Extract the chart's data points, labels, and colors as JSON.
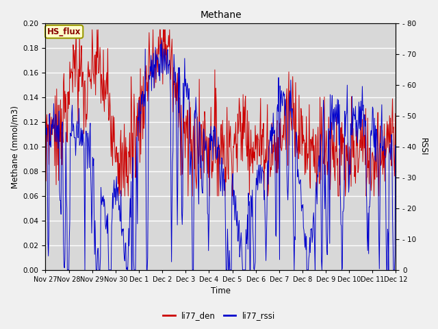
{
  "title": "Methane",
  "ylabel_left": "Methane (mmol/m3)",
  "ylabel_right": "RSSI",
  "xlabel": "Time",
  "legend_label": "HS_flux",
  "ylim_left": [
    0.0,
    0.2
  ],
  "ylim_right": [
    0,
    80
  ],
  "line1_label": "li77_den",
  "line2_label": "li77_rssi",
  "line1_color": "#cc0000",
  "line2_color": "#0000cc",
  "bg_color": "#d8d8d8",
  "fig_color": "#f0f0f0",
  "legend_box_facecolor": "#ffffcc",
  "legend_box_edgecolor": "#999900",
  "legend_text_color": "#880000",
  "yticks_left": [
    0.0,
    0.02,
    0.04,
    0.06,
    0.08,
    0.1,
    0.12,
    0.14,
    0.16,
    0.18,
    0.2
  ],
  "yticks_right": [
    0,
    10,
    20,
    30,
    40,
    50,
    60,
    70,
    80
  ],
  "x_tick_labels": [
    "Nov 27",
    "Nov 28",
    "Nov 29",
    "Nov 30",
    "Dec 1",
    "Dec 2",
    "Dec 3",
    "Dec 4",
    "Dec 5",
    "Dec 6",
    "Dec 7",
    "Dec 8",
    "Dec 9",
    "Dec 10",
    "Dec 11",
    "Dec 12"
  ],
  "n_hours": 360
}
